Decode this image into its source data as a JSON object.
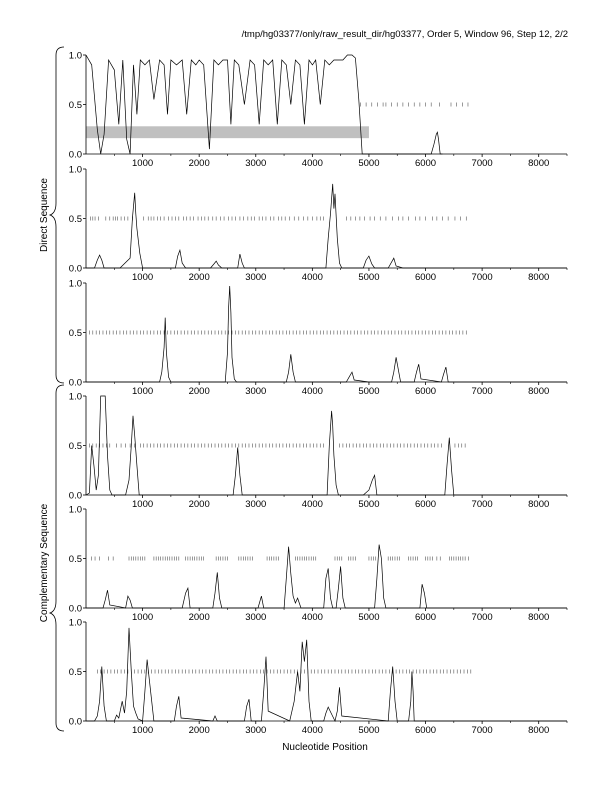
{
  "header": {
    "title": "/tmp/hg03377/only/raw_result_dir/hg03377, Order 5, Window 96, Step 12, 2/2"
  },
  "figure": {
    "xlabel": "Nucleotide Position",
    "group_labels": [
      "Direct Sequence",
      "Complementary Sequence"
    ],
    "y_ticks": [
      "1.0",
      "0.5",
      "0.0"
    ],
    "x_ticks": [
      "1000",
      "2000",
      "3000",
      "4000",
      "5000",
      "6000",
      "7000",
      "8000"
    ],
    "line_color": "#000000",
    "band_color": "#c0c0c0"
  },
  "chart_data": [
    {
      "type": "line",
      "panel": 1,
      "group": "Direct Sequence",
      "xlim": [
        0,
        8500
      ],
      "ylim": [
        0,
        1
      ],
      "grid": false,
      "x": [
        0,
        100,
        200,
        260,
        320,
        400,
        500,
        580,
        650,
        720,
        780,
        840,
        900,
        960,
        1040,
        1120,
        1200,
        1300,
        1380,
        1440,
        1500,
        1600,
        1700,
        1780,
        1860,
        1940,
        2000,
        2080,
        2180,
        2260,
        2340,
        2420,
        2500,
        2560,
        2620,
        2700,
        2800,
        2900,
        2980,
        3060,
        3140,
        3220,
        3300,
        3380,
        3460,
        3540,
        3620,
        3700,
        3780,
        3860,
        3940,
        4000,
        4060,
        4140,
        4220,
        4300,
        4380,
        4460,
        4540,
        4620,
        4700,
        4760,
        4820,
        4880,
        4950,
        6100,
        6150,
        6190,
        6210,
        6230,
        6260,
        6300
      ],
      "y": [
        1.0,
        0.9,
        0.25,
        0.0,
        0.2,
        0.95,
        0.85,
        0.3,
        0.95,
        0.15,
        0.0,
        0.9,
        0.4,
        0.95,
        0.9,
        0.95,
        0.55,
        0.95,
        0.9,
        0.4,
        0.95,
        0.9,
        0.95,
        0.4,
        0.95,
        0.9,
        0.95,
        0.9,
        0.05,
        0.95,
        0.9,
        0.95,
        0.95,
        0.3,
        0.95,
        0.9,
        0.5,
        0.95,
        0.9,
        0.3,
        0.95,
        0.9,
        0.95,
        0.3,
        0.95,
        0.9,
        0.5,
        0.95,
        0.9,
        0.3,
        0.95,
        0.9,
        0.95,
        0.5,
        0.95,
        0.9,
        0.95,
        0.95,
        0.95,
        1.0,
        1.0,
        0.97,
        0.55,
        0.0,
        0.0,
        0.0,
        0.1,
        0.2,
        0.22,
        0.15,
        0.0,
        0.0
      ],
      "band": {
        "x": [
          0,
          5000
        ],
        "y": [
          0.16,
          0.28
        ]
      },
      "ticks_y": 0.5,
      "ticks_x": [
        4850,
        4950,
        5050,
        5150,
        5250,
        5300,
        5400,
        5500,
        5600,
        5700,
        5800,
        5900,
        6000,
        6100,
        6250,
        6450,
        6550,
        6650,
        6750
      ]
    },
    {
      "type": "line",
      "panel": 2,
      "group": "Direct Sequence",
      "xlim": [
        0,
        8500
      ],
      "ylim": [
        0,
        1
      ],
      "grid": false,
      "x": [
        0,
        150,
        200,
        240,
        280,
        320,
        400,
        600,
        780,
        820,
        860,
        880,
        900,
        950,
        1000,
        1200,
        1580,
        1620,
        1660,
        1700,
        1760,
        2200,
        2260,
        2300,
        2340,
        2400,
        2680,
        2720,
        2760,
        2800,
        2850,
        3000,
        4240,
        4280,
        4320,
        4360,
        4380,
        4400,
        4440,
        4480,
        4520,
        4600,
        4900,
        4950,
        5000,
        5050,
        5100,
        5340,
        5400,
        5440,
        5480,
        5600,
        8500
      ],
      "y": [
        0,
        0,
        0.08,
        0.13,
        0.08,
        0,
        0,
        0,
        0.1,
        0.5,
        0.76,
        0.55,
        0.4,
        0.15,
        0.0,
        0,
        0,
        0.12,
        0.18,
        0.05,
        0,
        0,
        0.04,
        0.07,
        0.03,
        0,
        0,
        0.14,
        0.05,
        0,
        0,
        0,
        0,
        0.3,
        0.55,
        0.85,
        0.6,
        0.75,
        0.3,
        0.05,
        0,
        0,
        0,
        0.08,
        0.12,
        0.04,
        0,
        0,
        0.06,
        0.1,
        0.02,
        0,
        0
      ],
      "ticks_y": 0.5,
      "ticks_x": [
        0,
        80,
        120,
        160,
        220,
        350,
        420,
        480,
        520,
        560,
        620,
        680,
        740,
        820,
        1020,
        1100,
        1150,
        1200,
        1260,
        1320,
        1380,
        1460,
        1520,
        1580,
        1640,
        1720,
        1780,
        1840,
        1900,
        1980,
        2040,
        2100,
        2160,
        2240,
        2300,
        2380,
        2440,
        2520,
        2580,
        2640,
        2720,
        2780,
        2860,
        2920,
        2980,
        3060,
        3120,
        3180,
        3260,
        3320,
        3400,
        3460,
        3520,
        3600,
        3680,
        3760,
        3840,
        3920,
        4000,
        4080,
        4140,
        4200,
        4600,
        4680,
        4760,
        4840,
        4920,
        5020,
        5100,
        5200,
        5300,
        5420,
        5520,
        5600,
        5700,
        5820,
        5900,
        6000,
        6120,
        6200,
        6300,
        6400,
        6520,
        6620,
        6720
      ]
    },
    {
      "type": "line",
      "panel": 3,
      "group": "Direct Sequence",
      "xlim": [
        0,
        8500
      ],
      "ylim": [
        0,
        1
      ],
      "grid": false,
      "x": [
        0,
        1300,
        1340,
        1380,
        1400,
        1420,
        1460,
        1500,
        2460,
        2500,
        2520,
        2540,
        2560,
        2580,
        2620,
        2660,
        3540,
        3580,
        3620,
        3660,
        3700,
        4600,
        4660,
        4700,
        4740,
        5000,
        5400,
        5440,
        5480,
        5520,
        5560,
        5800,
        5840,
        5880,
        5920,
        6280,
        6320,
        6360,
        6400,
        8500
      ],
      "y": [
        0,
        0,
        0.1,
        0.35,
        0.65,
        0.3,
        0.05,
        0,
        0,
        0.3,
        0.75,
        0.97,
        0.7,
        0.25,
        0.03,
        0,
        0,
        0.1,
        0.28,
        0.1,
        0,
        0,
        0.06,
        0.1,
        0.02,
        0,
        0,
        0.1,
        0.25,
        0.12,
        0,
        0,
        0.1,
        0.18,
        0.03,
        0,
        0.08,
        0.15,
        0,
        0
      ],
      "ticks_y": 0.5,
      "ticks_x": [
        0,
        60,
        120,
        180,
        240,
        300,
        360,
        420,
        480,
        540,
        600,
        660,
        720,
        780,
        840,
        900,
        960,
        1020,
        1080,
        1140,
        1200,
        1260,
        1320,
        1380,
        1440,
        1500,
        1560,
        1620,
        1680,
        1740,
        1800,
        1860,
        1920,
        1980,
        2040,
        2100,
        2160,
        2220,
        2280,
        2340,
        2400,
        2460,
        2520,
        2580,
        2640,
        2700,
        2760,
        2820,
        2880,
        2940,
        3000,
        3060,
        3120,
        3180,
        3240,
        3300,
        3360,
        3420,
        3480,
        3540,
        3600,
        3660,
        3720,
        3780,
        3840,
        3900,
        3960,
        4020,
        4080,
        4140,
        4200,
        4260,
        4320,
        4380,
        4440,
        4500,
        4560,
        4620,
        4680,
        4740,
        4800,
        4860,
        4920,
        4980,
        5040,
        5100,
        5160,
        5220,
        5280,
        5340,
        5400,
        5460,
        5520,
        5580,
        5640,
        5700,
        5760,
        5820,
        5880,
        5940,
        6000,
        6060,
        6120,
        6180,
        6240,
        6300,
        6360,
        6420,
        6480,
        6540,
        6600,
        6660,
        6720
      ]
    },
    {
      "type": "line",
      "panel": 4,
      "group": "Complementary Sequence",
      "xlim": [
        0,
        8500
      ],
      "ylim": [
        0,
        1
      ],
      "grid": false,
      "x": [
        0,
        60,
        100,
        140,
        180,
        220,
        260,
        300,
        340,
        380,
        420,
        460,
        700,
        760,
        800,
        830,
        860,
        900,
        940,
        2600,
        2640,
        2680,
        2720,
        2760,
        4260,
        4300,
        4340,
        4360,
        4380,
        4420,
        4460,
        4900,
        5000,
        5060,
        5100,
        5140,
        6340,
        6380,
        6420,
        6460,
        6500,
        8500
      ],
      "y": [
        0,
        0.02,
        0.5,
        0.3,
        0.05,
        0.2,
        1.0,
        1.0,
        1.0,
        0.4,
        0.05,
        0,
        0,
        0.15,
        0.5,
        0.8,
        0.6,
        0.3,
        0,
        0,
        0.2,
        0.48,
        0.2,
        0,
        0,
        0.5,
        0.85,
        0.7,
        0.4,
        0.1,
        0,
        0,
        0.05,
        0.15,
        0.2,
        0,
        0,
        0.3,
        0.58,
        0.25,
        0,
        0
      ],
      "ticks_y": 0.5,
      "ticks_x": [
        0,
        60,
        120,
        180,
        240,
        300,
        360,
        420,
        540,
        620,
        700,
        780,
        860,
        960,
        1020,
        1080,
        1140,
        1200,
        1260,
        1320,
        1380,
        1440,
        1500,
        1560,
        1620,
        1680,
        1740,
        1800,
        1860,
        1920,
        1980,
        2040,
        2100,
        2160,
        2220,
        2280,
        2340,
        2400,
        2460,
        2520,
        2580,
        2640,
        2700,
        2760,
        2820,
        2880,
        2940,
        3000,
        3060,
        3120,
        3180,
        3240,
        3300,
        3360,
        3420,
        3480,
        3540,
        3600,
        3660,
        3720,
        3780,
        3840,
        3900,
        3960,
        4020,
        4080,
        4140,
        4200,
        4480,
        4540,
        4600,
        4660,
        4720,
        4780,
        4840,
        4900,
        4960,
        5020,
        5080,
        5140,
        5200,
        5260,
        5320,
        5380,
        5440,
        5500,
        5560,
        5620,
        5680,
        5740,
        5800,
        5860,
        5920,
        5980,
        6040,
        6100,
        6160,
        6220,
        6280,
        6520,
        6580,
        6640,
        6700
      ]
    },
    {
      "type": "line",
      "panel": 5,
      "group": "Complementary Sequence",
      "xlim": [
        0,
        8500
      ],
      "ylim": [
        0,
        1
      ],
      "grid": false,
      "x": [
        0,
        300,
        340,
        380,
        420,
        700,
        740,
        780,
        820,
        1700,
        1760,
        1800,
        1840,
        2240,
        2280,
        2320,
        2360,
        2400,
        3040,
        3100,
        3140,
        3500,
        3540,
        3580,
        3620,
        3660,
        3700,
        3740,
        3800,
        4200,
        4240,
        4280,
        4320,
        4360,
        4420,
        4460,
        4500,
        4540,
        4580,
        5100,
        5140,
        5180,
        5220,
        5260,
        5300,
        5900,
        5940,
        5980,
        6020,
        8500
      ],
      "y": [
        0,
        0,
        0.08,
        0.18,
        0.03,
        0,
        0.12,
        0.08,
        0,
        0,
        0.15,
        0.2,
        0,
        0,
        0.15,
        0.36,
        0.1,
        0,
        0,
        0.12,
        0,
        0,
        0.3,
        0.62,
        0.35,
        0.12,
        0.05,
        0.1,
        0,
        0,
        0.3,
        0.4,
        0.1,
        0,
        0,
        0.2,
        0.42,
        0.1,
        0,
        0,
        0.3,
        0.64,
        0.5,
        0.1,
        0,
        0,
        0.24,
        0.15,
        0,
        0
      ],
      "ticks_y": 0.5,
      "ticks_x": [
        100,
        160,
        240,
        400,
        480,
        760,
        800,
        840,
        880,
        920,
        960,
        1000,
        1040,
        1200,
        1240,
        1280,
        1320,
        1360,
        1400,
        1440,
        1480,
        1520,
        1560,
        1600,
        1640,
        1760,
        1800,
        1840,
        1880,
        1920,
        1960,
        2000,
        2040,
        2080,
        2300,
        2340,
        2380,
        2420,
        2460,
        2500,
        2700,
        2740,
        2780,
        2820,
        2860,
        2900,
        2940,
        3200,
        3240,
        3280,
        3320,
        3360,
        3400,
        3700,
        3740,
        3780,
        3820,
        3860,
        3900,
        3940,
        3980,
        4020,
        4060,
        4400,
        4440,
        4480,
        4520,
        4640,
        4680,
        4720,
        4760,
        5000,
        5040,
        5080,
        5120,
        5340,
        5380,
        5420,
        5460,
        5500,
        5540,
        5700,
        5740,
        5780,
        5820,
        5860,
        6000,
        6040,
        6080,
        6120,
        6200,
        6260,
        6420,
        6460,
        6500,
        6540,
        6580,
        6620,
        6660,
        6700,
        6760
      ]
    },
    {
      "type": "line",
      "panel": 6,
      "group": "Complementary Sequence",
      "xlim": [
        0,
        8500
      ],
      "ylim": [
        0,
        1
      ],
      "grid": false,
      "x": [
        0,
        150,
        200,
        240,
        280,
        320,
        360,
        500,
        540,
        580,
        640,
        680,
        720,
        760,
        800,
        840,
        880,
        920,
        1000,
        1040,
        1080,
        1200,
        1560,
        1600,
        1640,
        1680,
        2240,
        2280,
        2320,
        2800,
        2840,
        2880,
        2920,
        3100,
        3140,
        3180,
        3220,
        3600,
        3680,
        3740,
        3780,
        3820,
        3860,
        3900,
        3940,
        3980,
        4200,
        4240,
        4280,
        4400,
        4440,
        4480,
        4520,
        5340,
        5380,
        5420,
        5460,
        5500,
        5700,
        5740,
        5760,
        5780,
        5800,
        8500
      ],
      "y": [
        0,
        0,
        0.05,
        0.2,
        0.55,
        0.15,
        0,
        0,
        0.06,
        0.03,
        0.2,
        0.08,
        0.3,
        0.94,
        0.5,
        0.15,
        0.08,
        0.02,
        0,
        0.3,
        0.62,
        0,
        0,
        0.15,
        0.25,
        0.03,
        0,
        0.05,
        0,
        0,
        0.15,
        0.22,
        0,
        0,
        0.3,
        0.65,
        0.1,
        0,
        0.2,
        0.5,
        0.3,
        0.8,
        0.6,
        0.82,
        0.2,
        0,
        0,
        0.08,
        0.14,
        0,
        0.1,
        0.34,
        0.05,
        0,
        0.3,
        0.55,
        0.2,
        0,
        0,
        0.2,
        0.5,
        0.3,
        0,
        0
      ],
      "ticks_y": 0.5,
      "ticks_x": [
        200,
        260,
        320,
        380,
        440,
        500,
        560,
        620,
        680,
        740,
        800,
        860,
        920,
        980,
        1040,
        1100,
        1160,
        1220,
        1280,
        1340,
        1400,
        1460,
        1520,
        1580,
        1640,
        1700,
        1760,
        1820,
        1880,
        1940,
        2000,
        2060,
        2120,
        2180,
        2240,
        2300,
        2360,
        2420,
        2480,
        2540,
        2600,
        2660,
        2720,
        2780,
        2840,
        2900,
        2960,
        3020,
        3080,
        3140,
        3200,
        3260,
        3320,
        3380,
        3440,
        3500,
        3560,
        3620,
        3680,
        3740,
        3800,
        3860,
        3920,
        3980,
        4040,
        4100,
        4160,
        4220,
        4280,
        4340,
        4400,
        4460,
        4520,
        4580,
        4640,
        4700,
        4760,
        4820,
        4880,
        4940,
        5000,
        5060,
        5120,
        5180,
        5240,
        5300,
        5360,
        5420,
        5480,
        5540,
        5600,
        5660,
        5720,
        5780,
        5840,
        5900,
        5960,
        6020,
        6080,
        6140,
        6200,
        6260,
        6320,
        6380,
        6440,
        6500,
        6560,
        6620,
        6680,
        6740,
        6800
      ]
    }
  ]
}
